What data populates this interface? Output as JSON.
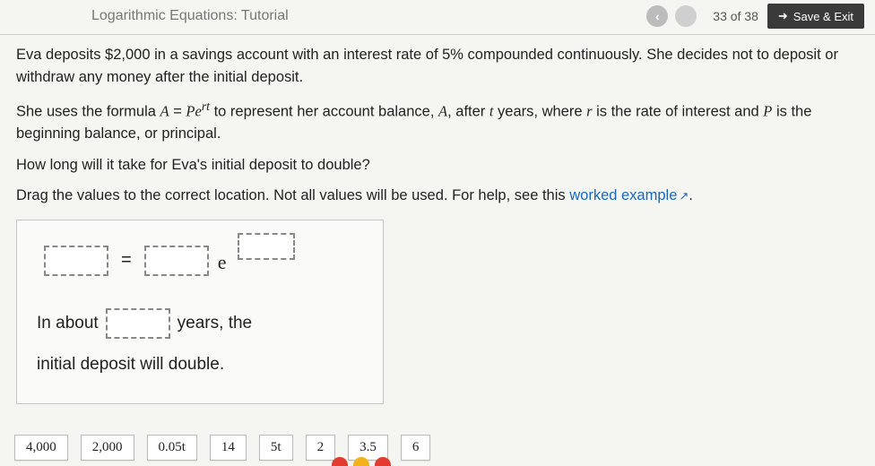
{
  "header": {
    "breadcrumb": "Logarithmic Equations: Tutorial",
    "progress": "33 of 38",
    "back_icon_glyph": "‹",
    "save_exit_label": "Save & Exit",
    "save_exit_icon_glyph": "➜"
  },
  "problem": {
    "p1": "Eva deposits $2,000 in a savings account with an interest rate of 5% compounded continuously. She decides not to deposit or withdraw any money after the initial deposit.",
    "p2_pre": "She uses the formula ",
    "p2_formula_A": "A",
    "p2_formula_eq": " = ",
    "p2_formula_P": "Pe",
    "p2_formula_exp": "rt",
    "p2_post": " to represent her account balance, ",
    "p2_Avar": "A",
    "p2_after": ", after ",
    "p2_tvar": "t",
    "p2_years": " years, where ",
    "p2_rvar": "r",
    "p2_rate": " is the rate of interest and ",
    "p2_Pvar": "P",
    "p2_principal": " is the beginning balance, or principal.",
    "p3": "How long will it take for Eva's initial deposit to double?",
    "p4_pre": "Drag the values to the correct location. Not all values will be used. For help, see this ",
    "p4_link": "worked example",
    "p4_post": "."
  },
  "equation": {
    "equals": "=",
    "e": "e"
  },
  "sentence": {
    "s1": "In about",
    "s2": "years, the",
    "s3": "initial deposit will double."
  },
  "tiles": [
    "4,000",
    "2,000",
    "0.05t",
    "14",
    "5t",
    "2",
    "3.5",
    "6"
  ],
  "colors": {
    "dot1": "#e33b2e",
    "dot2": "#f3b21b",
    "dot3": "#e33b2e"
  }
}
